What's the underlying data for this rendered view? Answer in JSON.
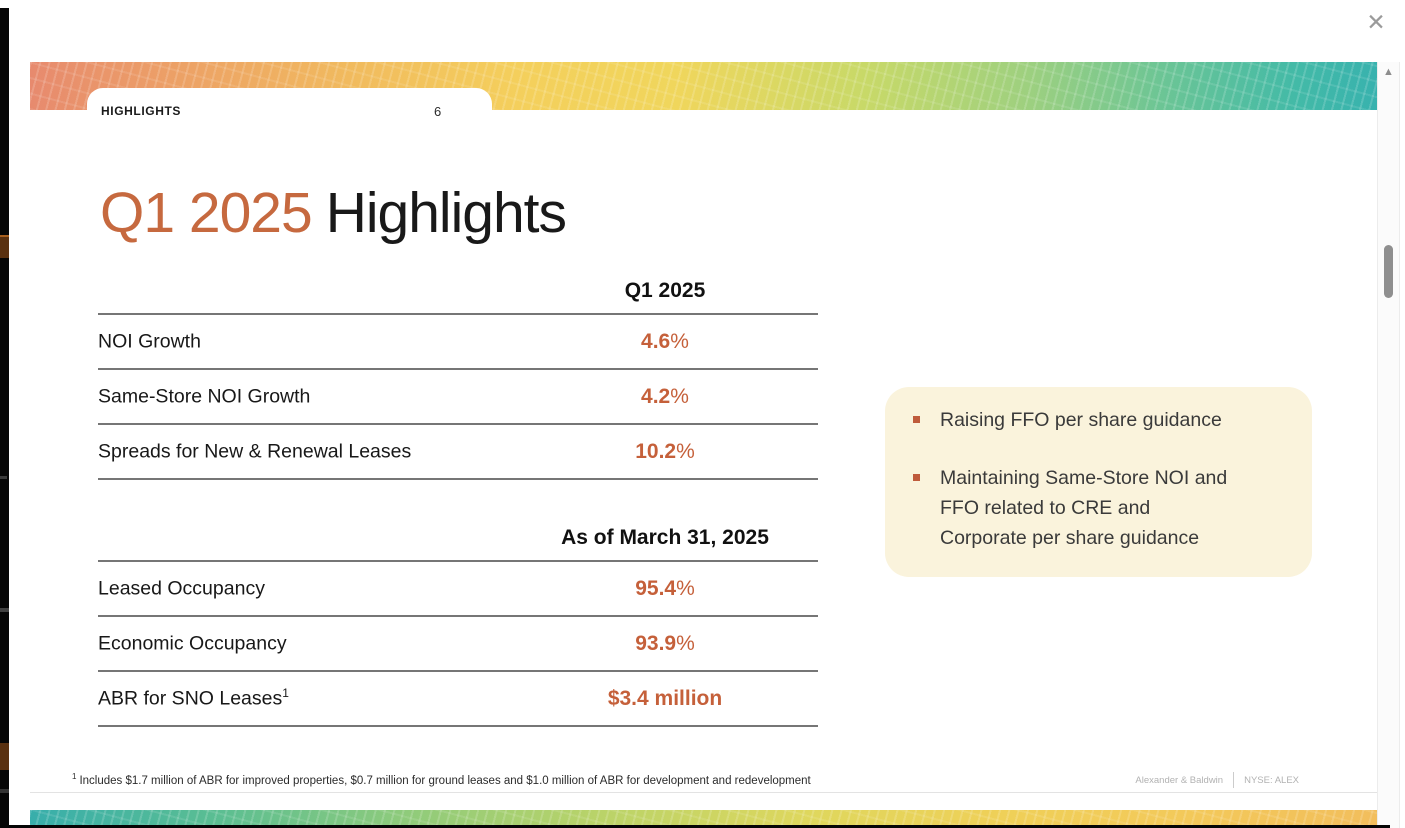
{
  "icons": {
    "close": "✕",
    "scroll_up": "▲"
  },
  "tab": {
    "label": "HIGHLIGHTS",
    "page_number": "6"
  },
  "slide": {
    "title": {
      "highlight": "Q1 2025",
      "rest": "Highlights"
    },
    "table1": {
      "header": "Q1 2025",
      "rows": [
        {
          "label": "NOI Growth",
          "label_sup": "",
          "value": "4.6",
          "suffix": "%"
        },
        {
          "label": "Same-Store NOI Growth",
          "label_sup": "",
          "value": "4.2",
          "suffix": "%"
        },
        {
          "label": "Spreads for New & Renewal Leases",
          "label_sup": "",
          "value": "10.2",
          "suffix": "%"
        }
      ]
    },
    "table2": {
      "header": "As of March 31, 2025",
      "rows": [
        {
          "label": "Leased Occupancy",
          "label_sup": "",
          "value": "95.4",
          "suffix": "%"
        },
        {
          "label": "Economic Occupancy",
          "label_sup": "",
          "value": "93.9",
          "suffix": "%"
        },
        {
          "label": "ABR for SNO Leases",
          "label_sup": "1",
          "value": "$3.4 million",
          "suffix": ""
        }
      ]
    },
    "callout": {
      "bullets": [
        {
          "text": "Raising FFO per share guidance"
        },
        {
          "text": "Maintaining Same-Store NOI and\nFFO related to CRE and\nCorporate per share guidance"
        }
      ]
    },
    "footnote": {
      "sup": "1",
      "text": "Includes $1.7 million of ABR for improved properties, $0.7 million for ground leases and $1.0 million of ABR for development and redevelopment"
    },
    "footer": {
      "company": "Alexander & Baldwin",
      "ticker": "NYSE: ALEX"
    }
  },
  "colors": {
    "accent_orange": "#c5603a",
    "title_orange": "#c6693f",
    "callout_background": "#faf3dc",
    "bullet_square": "#bf5b3b",
    "banner_gradient": [
      "#e78a6e",
      "#f1bb5e",
      "#f4cf5c",
      "#c8d968",
      "#9ed07f",
      "#43baa7",
      "#38b2ae"
    ],
    "next_slide_gradient": [
      "#38aeab",
      "#8fcb7b",
      "#dfd75d",
      "#f2be5c"
    ]
  }
}
